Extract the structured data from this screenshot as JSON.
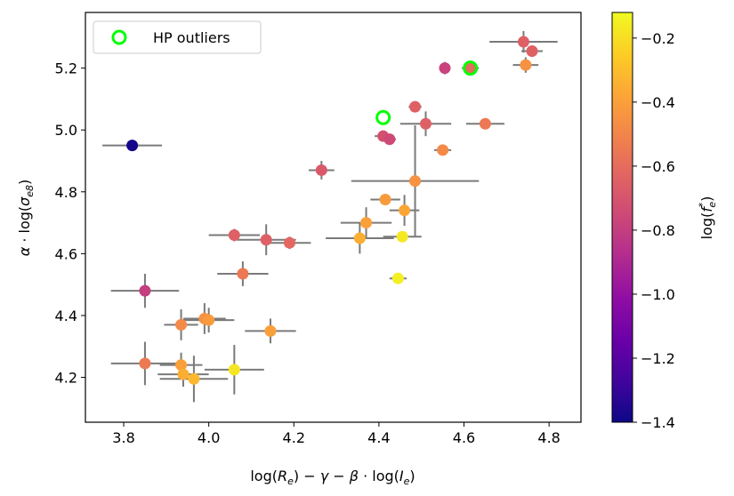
{
  "chart_data": {
    "type": "scatter",
    "xlabel": "log(R_e) − γ − β · log(I_e)",
    "ylabel": "α · log(σ_e8)",
    "xlim": [
      3.71,
      4.875
    ],
    "ylim": [
      4.055,
      5.38
    ],
    "x_ticks": [
      "3.8",
      "4.0",
      "4.2",
      "4.4",
      "4.6",
      "4.8"
    ],
    "x_tick_values": [
      3.8,
      4.0,
      4.2,
      4.4,
      4.6,
      4.8
    ],
    "y_ticks": [
      "4.2",
      "4.4",
      "4.6",
      "4.8",
      "5.0",
      "5.2"
    ],
    "y_tick_values": [
      4.2,
      4.4,
      4.6,
      4.8,
      5.0,
      5.2
    ],
    "colorbar": {
      "label": "log(f_e*)",
      "min": -1.4,
      "max": -0.12,
      "ticks": [
        "−0.2",
        "−0.4",
        "−0.6",
        "−0.8",
        "−1.0",
        "−1.2",
        "−1.4"
      ],
      "tick_values": [
        -0.2,
        -0.4,
        -0.6,
        -0.8,
        -1.0,
        -1.2,
        -1.4
      ],
      "colormap": "plasma"
    },
    "legend": {
      "label": "HP outliers",
      "marker_color": "#00ff00",
      "position": "top-left"
    },
    "errorbar_color": "#7a7a7a",
    "points": [
      {
        "x": 3.82,
        "y": 4.95,
        "xerr": 0.07,
        "yerr": 0.015,
        "c": -1.38
      },
      {
        "x": 3.85,
        "y": 4.48,
        "xerr": 0.08,
        "yerr": 0.055,
        "c": -0.8
      },
      {
        "x": 3.85,
        "y": 4.245,
        "xerr": 0.08,
        "yerr": 0.07,
        "c": -0.55
      },
      {
        "x": 3.935,
        "y": 4.37,
        "xerr": 0.04,
        "yerr": 0.05,
        "c": -0.48
      },
      {
        "x": 3.935,
        "y": 4.24,
        "xerr": 0.05,
        "yerr": 0.04,
        "c": -0.4
      },
      {
        "x": 3.94,
        "y": 4.21,
        "xerr": 0.06,
        "yerr": 0.04,
        "c": -0.35
      },
      {
        "x": 3.965,
        "y": 4.195,
        "xerr": 0.08,
        "yerr": 0.075,
        "c": -0.32
      },
      {
        "x": 3.99,
        "y": 4.39,
        "xerr": 0.05,
        "yerr": 0.05,
        "c": -0.45
      },
      {
        "x": 4.0,
        "y": 4.385,
        "xerr": 0.06,
        "yerr": 0.04,
        "c": -0.42
      },
      {
        "x": 4.06,
        "y": 4.225,
        "xerr": 0.07,
        "yerr": 0.08,
        "c": -0.18
      },
      {
        "x": 4.06,
        "y": 4.66,
        "xerr": 0.06,
        "yerr": 0.02,
        "c": -0.65
      },
      {
        "x": 4.08,
        "y": 4.535,
        "xerr": 0.06,
        "yerr": 0.04,
        "c": -0.55
      },
      {
        "x": 4.135,
        "y": 4.645,
        "xerr": 0.07,
        "yerr": 0.05,
        "c": -0.65
      },
      {
        "x": 4.145,
        "y": 4.35,
        "xerr": 0.06,
        "yerr": 0.04,
        "c": -0.4
      },
      {
        "x": 4.19,
        "y": 4.635,
        "xerr": 0.05,
        "yerr": 0.02,
        "c": -0.62
      },
      {
        "x": 4.265,
        "y": 4.87,
        "xerr": 0.03,
        "yerr": 0.03,
        "c": -0.68
      },
      {
        "x": 4.355,
        "y": 4.65,
        "xerr": 0.08,
        "yerr": 0.05,
        "c": -0.35
      },
      {
        "x": 4.37,
        "y": 4.7,
        "xerr": 0.06,
        "yerr": 0.05,
        "c": -0.4
      },
      {
        "x": 4.415,
        "y": 4.775,
        "xerr": 0.035,
        "yerr": 0.015,
        "c": -0.42
      },
      {
        "x": 4.41,
        "y": 4.98,
        "xerr": 0.02,
        "yerr": 0.015,
        "c": -0.72
      },
      {
        "x": 4.425,
        "y": 4.97,
        "xerr": 0.015,
        "yerr": 0.015,
        "c": -0.75
      },
      {
        "x": 4.445,
        "y": 4.52,
        "xerr": 0.02,
        "yerr": 0.015,
        "c": -0.15
      },
      {
        "x": 4.455,
        "y": 4.655,
        "xerr": 0.045,
        "yerr": 0.015,
        "c": -0.17
      },
      {
        "x": 4.46,
        "y": 4.74,
        "xerr": 0.035,
        "yerr": 0.05,
        "c": -0.38
      },
      {
        "x": 4.485,
        "y": 4.835,
        "xerr": 0.15,
        "yerr": 0.18,
        "c": -0.45
      },
      {
        "x": 4.485,
        "y": 5.075,
        "xerr": 0.015,
        "yerr": 0.015,
        "c": -0.65
      },
      {
        "x": 4.51,
        "y": 5.02,
        "xerr": 0.06,
        "yerr": 0.04,
        "c": -0.65
      },
      {
        "x": 4.55,
        "y": 4.935,
        "xerr": 0.02,
        "yerr": 0.015,
        "c": -0.48
      },
      {
        "x": 4.555,
        "y": 5.2,
        "xerr": 0.01,
        "yerr": 0.02,
        "c": -0.78
      },
      {
        "x": 4.615,
        "y": 5.2,
        "xerr": 0.02,
        "yerr": 0.015,
        "c": -0.6
      },
      {
        "x": 4.65,
        "y": 5.02,
        "xerr": 0.045,
        "yerr": 0.015,
        "c": -0.55
      },
      {
        "x": 4.74,
        "y": 5.285,
        "xerr": 0.08,
        "yerr": 0.035,
        "c": -0.65
      },
      {
        "x": 4.745,
        "y": 5.21,
        "xerr": 0.03,
        "yerr": 0.025,
        "c": -0.45
      },
      {
        "x": 4.76,
        "y": 5.255,
        "xerr": 0.025,
        "yerr": 0.015,
        "c": -0.65
      }
    ],
    "outliers": [
      {
        "x": 4.41,
        "y": 5.04
      },
      {
        "x": 4.615,
        "y": 5.2
      }
    ]
  }
}
